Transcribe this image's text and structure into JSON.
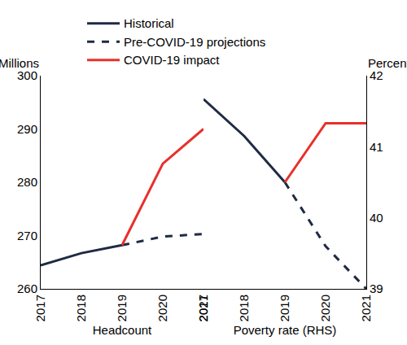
{
  "chart_data": {
    "type": "line",
    "y_label": "Millions",
    "y2_label": "Percent",
    "legend": "upper left",
    "grid": false,
    "ylim": [
      260,
      300
    ],
    "yticks": [
      260,
      270,
      280,
      290,
      300
    ],
    "y2lim": [
      39,
      42
    ],
    "y2ticks": [
      39,
      40,
      41,
      42
    ],
    "panels": [
      {
        "name": "Headcount",
        "axis": "y",
        "categories": [
          "2017",
          "2018",
          "2019",
          "2020",
          "2021"
        ],
        "series": [
          {
            "name": "Historical",
            "color": "#1f2a44",
            "line_style": "solid",
            "values": [
              264.4,
              266.7,
              268.2,
              null,
              null
            ]
          },
          {
            "name": "Pre-COVID-19 projections",
            "color": "#1f2a44",
            "line_style": "dash",
            "values": [
              null,
              null,
              268.2,
              269.8,
              270.3
            ]
          },
          {
            "name": "COVID-19 impact",
            "color": "#e8302a",
            "line_style": "solid",
            "values": [
              null,
              null,
              268.2,
              283.5,
              290
            ]
          }
        ]
      },
      {
        "name": "Poverty rate (RHS)",
        "axis": "y2",
        "categories": [
          "2017",
          "2018",
          "2019",
          "2020",
          "2021"
        ],
        "series": [
          {
            "name": "Historical",
            "color": "#1f2a44",
            "line_style": "solid",
            "values": [
              41.67,
              41.15,
              40.5,
              null,
              null
            ]
          },
          {
            "name": "Pre-COVID-19 projections",
            "color": "#1f2a44",
            "line_style": "dash",
            "values": [
              null,
              null,
              40.5,
              39.6,
              39.0
            ]
          },
          {
            "name": "COVID-19 impact",
            "color": "#e8302a",
            "line_style": "solid",
            "values": [
              null,
              null,
              40.5,
              41.33,
              41.33
            ]
          }
        ]
      }
    ]
  }
}
